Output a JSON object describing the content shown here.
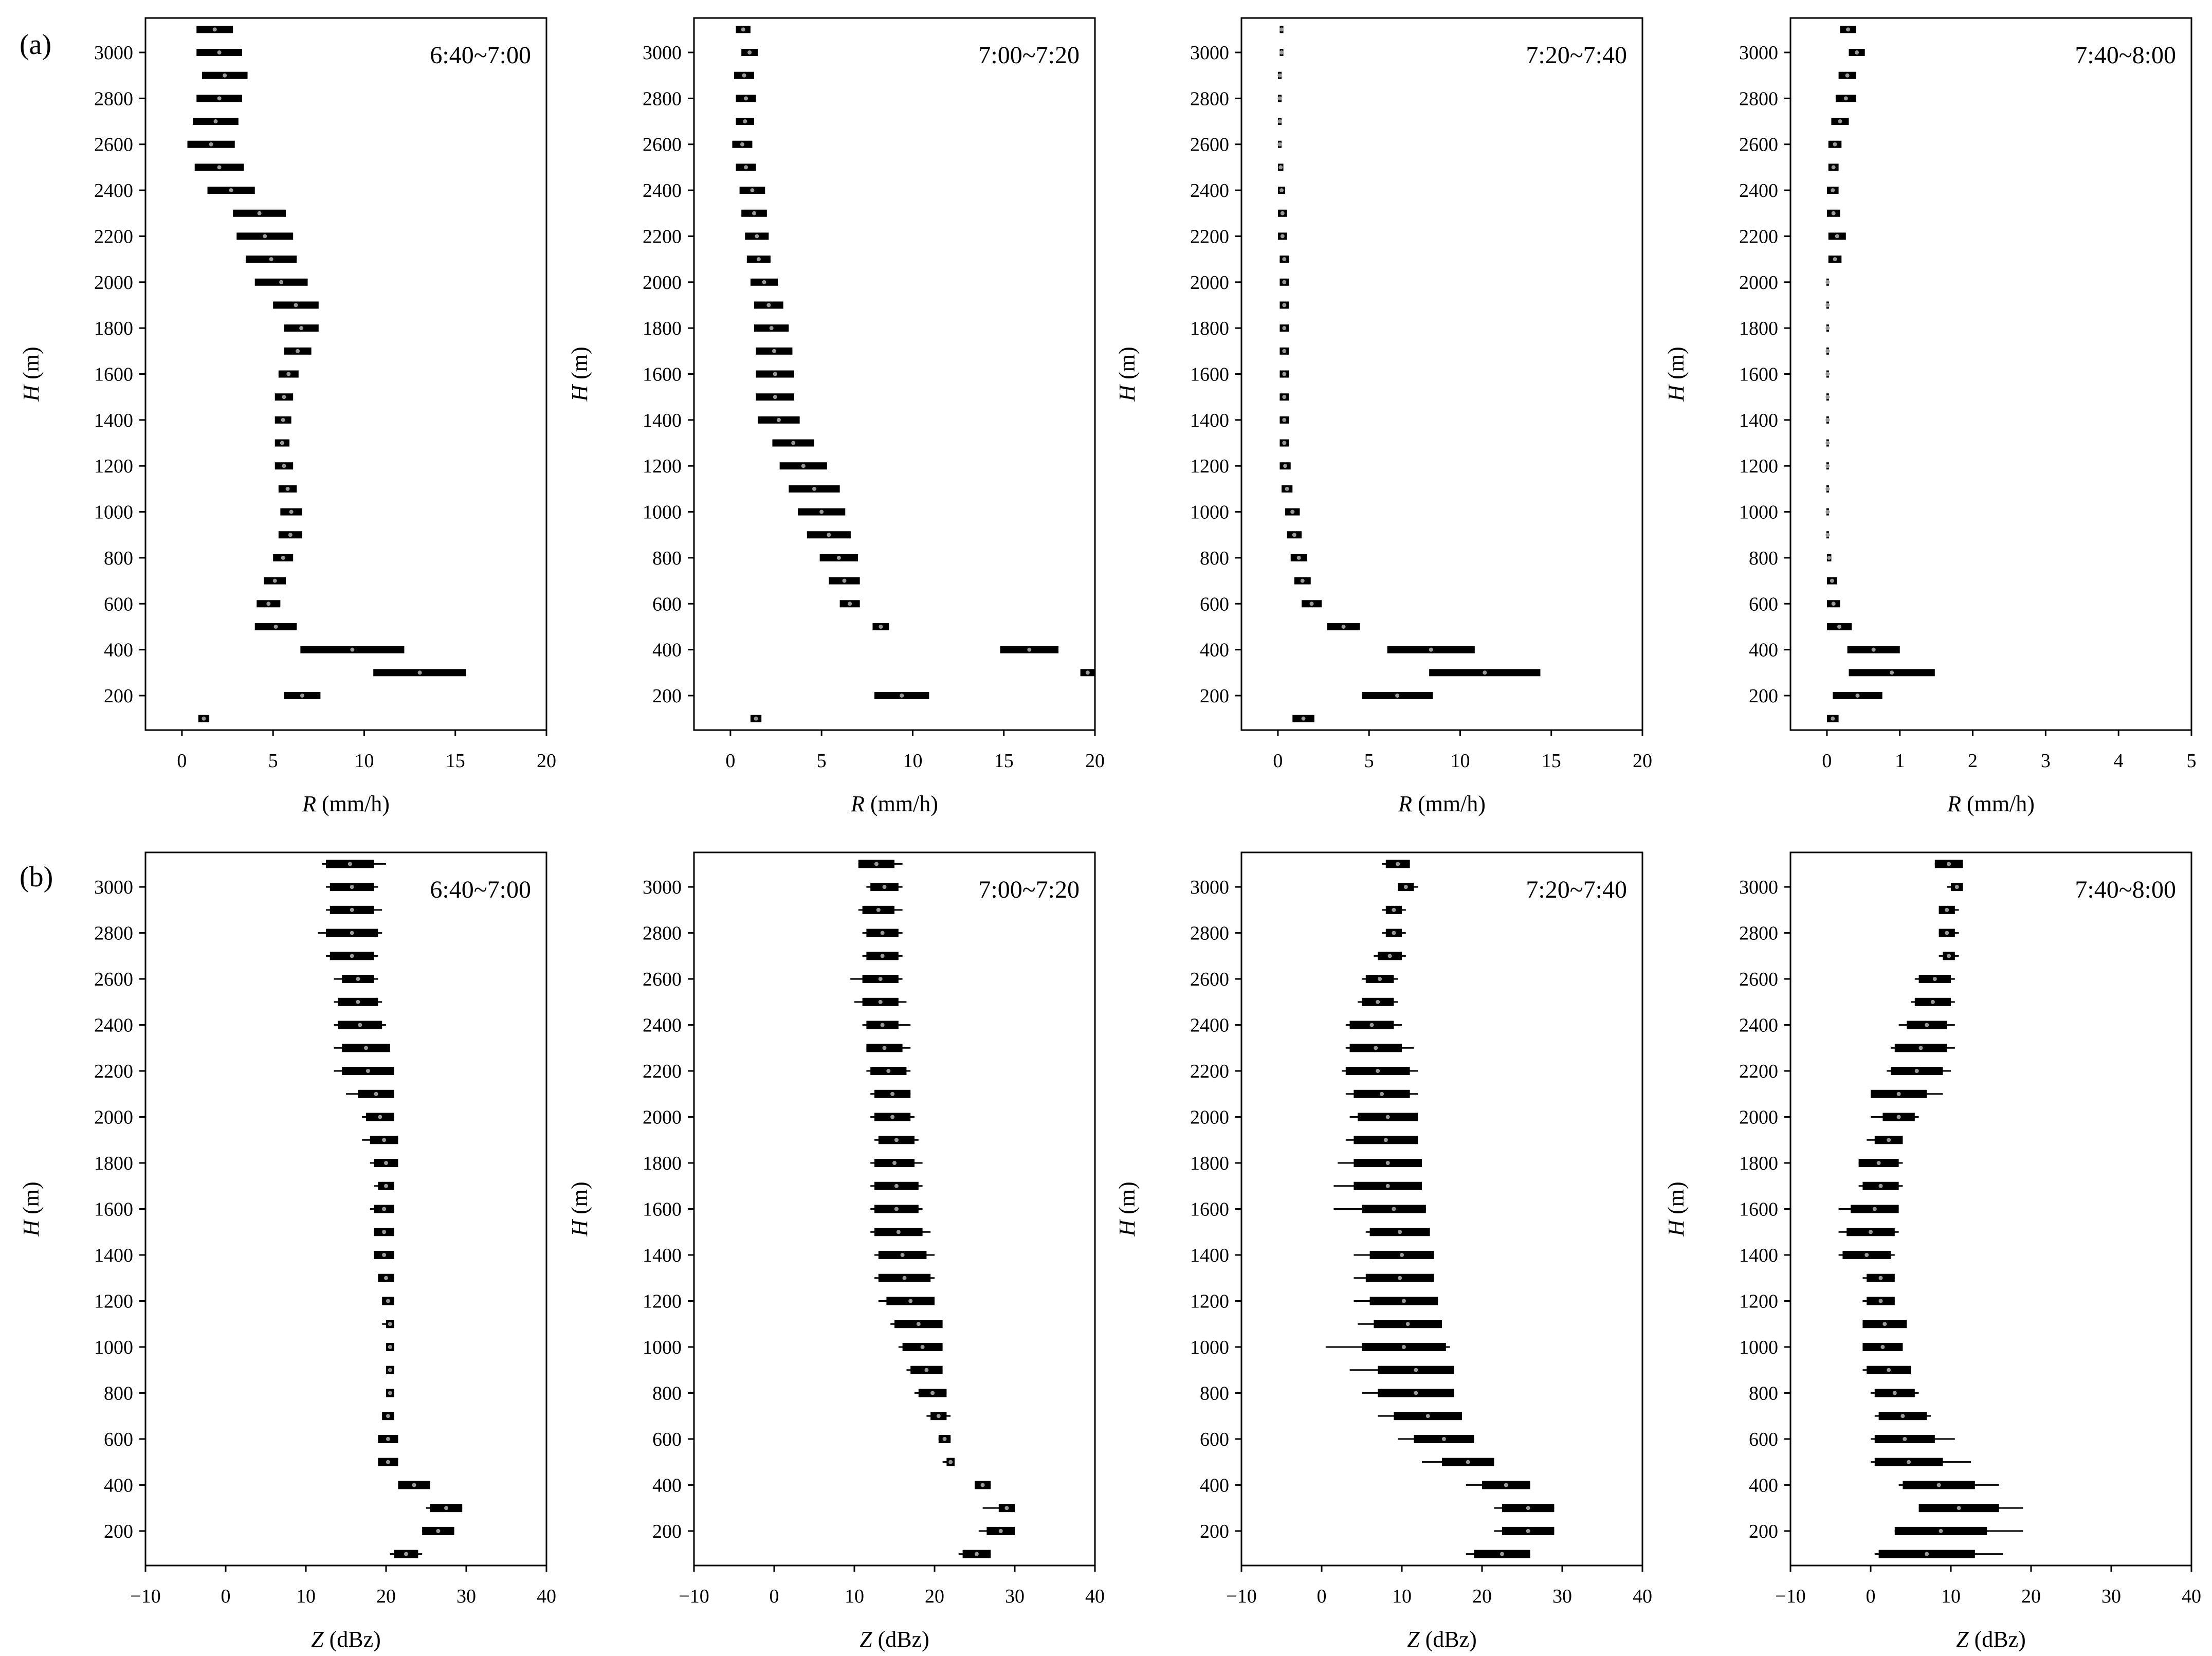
{
  "figure": {
    "row_a_label": "(a)",
    "row_b_label": "(b)"
  },
  "chart_data": [
    {
      "type": "range-bar",
      "row": "a",
      "title": "6:40~7:00",
      "xlabel_var": "R",
      "xlabel_unit": " (mm/h)",
      "ylabel_var": "H",
      "ylabel_unit": " (m)",
      "xlim": [
        -2,
        20
      ],
      "xticks": [
        0,
        5,
        10,
        15,
        20
      ],
      "ylim": [
        50,
        3150
      ],
      "yticks": [
        200,
        400,
        600,
        800,
        1000,
        1200,
        1400,
        1600,
        1800,
        2000,
        2200,
        2400,
        2600,
        2800,
        3000
      ],
      "heights": [
        3100,
        3000,
        2900,
        2800,
        2700,
        2600,
        2500,
        2400,
        2300,
        2200,
        2100,
        2000,
        1900,
        1800,
        1700,
        1600,
        1500,
        1400,
        1300,
        1200,
        1100,
        1000,
        900,
        800,
        700,
        600,
        500,
        400,
        300,
        200,
        100
      ],
      "low": [
        0.8,
        0.8,
        1.1,
        0.8,
        0.6,
        0.3,
        0.7,
        1.4,
        2.8,
        3.0,
        3.5,
        4.0,
        5.0,
        5.6,
        5.6,
        5.3,
        5.1,
        5.1,
        5.1,
        5.1,
        5.3,
        5.4,
        5.3,
        5.0,
        4.5,
        4.1,
        4.0,
        6.5,
        10.5,
        5.6,
        0.9
      ],
      "high": [
        2.8,
        3.3,
        3.6,
        3.3,
        3.1,
        2.9,
        3.4,
        4.0,
        5.7,
        6.1,
        6.3,
        6.9,
        7.5,
        7.5,
        7.1,
        6.4,
        6.1,
        6.0,
        5.9,
        6.1,
        6.3,
        6.6,
        6.6,
        6.1,
        5.7,
        5.4,
        6.3,
        12.2,
        15.6,
        7.6,
        1.5
      ]
    },
    {
      "type": "range-bar",
      "row": "a",
      "title": "7:00~7:20",
      "xlabel_var": "R",
      "xlabel_unit": " (mm/h)",
      "ylabel_var": "H",
      "ylabel_unit": " (m)",
      "xlim": [
        -2,
        20
      ],
      "xticks": [
        0,
        5,
        10,
        15,
        20
      ],
      "ylim": [
        50,
        3150
      ],
      "yticks": [
        200,
        400,
        600,
        800,
        1000,
        1200,
        1400,
        1600,
        1800,
        2000,
        2200,
        2400,
        2600,
        2800,
        3000
      ],
      "heights": [
        3100,
        3000,
        2900,
        2800,
        2700,
        2600,
        2500,
        2400,
        2300,
        2200,
        2100,
        2000,
        1900,
        1800,
        1700,
        1600,
        1500,
        1400,
        1300,
        1200,
        1100,
        1000,
        900,
        800,
        700,
        600,
        500,
        400,
        300,
        200,
        100
      ],
      "low": [
        0.3,
        0.6,
        0.2,
        0.3,
        0.3,
        0.1,
        0.3,
        0.5,
        0.6,
        0.8,
        0.9,
        1.1,
        1.3,
        1.3,
        1.4,
        1.4,
        1.4,
        1.5,
        2.3,
        2.7,
        3.2,
        3.7,
        4.2,
        4.9,
        5.4,
        6.0,
        7.8,
        14.8,
        19.2,
        7.9,
        1.1
      ],
      "high": [
        1.1,
        1.5,
        1.3,
        1.4,
        1.3,
        1.2,
        1.4,
        1.9,
        2.0,
        2.1,
        2.2,
        2.6,
        2.9,
        3.2,
        3.4,
        3.5,
        3.5,
        3.8,
        4.6,
        5.3,
        6.0,
        6.3,
        6.6,
        7.0,
        7.1,
        7.1,
        8.7,
        18.0,
        20.0,
        10.9,
        1.7
      ]
    },
    {
      "type": "range-bar",
      "row": "a",
      "title": "7:20~7:40",
      "xlabel_var": "R",
      "xlabel_unit": " (mm/h)",
      "ylabel_var": "H",
      "ylabel_unit": " (m)",
      "xlim": [
        -2,
        20
      ],
      "xticks": [
        0,
        5,
        10,
        15,
        20
      ],
      "ylim": [
        50,
        3150
      ],
      "yticks": [
        200,
        400,
        600,
        800,
        1000,
        1200,
        1400,
        1600,
        1800,
        2000,
        2200,
        2400,
        2600,
        2800,
        3000
      ],
      "heights": [
        3100,
        3000,
        2900,
        2800,
        2700,
        2600,
        2500,
        2400,
        2300,
        2200,
        2100,
        2000,
        1900,
        1800,
        1700,
        1600,
        1500,
        1400,
        1300,
        1200,
        1100,
        1000,
        900,
        800,
        700,
        600,
        500,
        400,
        300,
        200,
        100
      ],
      "low": [
        0.1,
        0.1,
        0.0,
        0.0,
        0.0,
        0.0,
        0.0,
        0.0,
        0.0,
        0.0,
        0.1,
        0.1,
        0.1,
        0.1,
        0.1,
        0.1,
        0.1,
        0.1,
        0.1,
        0.1,
        0.2,
        0.4,
        0.5,
        0.7,
        0.9,
        1.3,
        2.7,
        6.0,
        8.3,
        4.6,
        0.8
      ],
      "high": [
        0.3,
        0.3,
        0.2,
        0.2,
        0.2,
        0.2,
        0.3,
        0.4,
        0.5,
        0.5,
        0.6,
        0.6,
        0.6,
        0.6,
        0.6,
        0.6,
        0.6,
        0.6,
        0.6,
        0.7,
        0.8,
        1.2,
        1.3,
        1.6,
        1.8,
        2.4,
        4.5,
        10.8,
        14.4,
        8.5,
        2.0
      ]
    },
    {
      "type": "range-bar",
      "row": "a",
      "title": "7:40~8:00",
      "xlabel_var": "R",
      "xlabel_unit": " (mm/h)",
      "ylabel_var": "H",
      "ylabel_unit": " (m)",
      "xlim": [
        -0.5,
        5
      ],
      "xticks": [
        0,
        1,
        2,
        3,
        4,
        5
      ],
      "ylim": [
        50,
        3150
      ],
      "yticks": [
        200,
        400,
        600,
        800,
        1000,
        1200,
        1400,
        1600,
        1800,
        2000,
        2200,
        2400,
        2600,
        2800,
        3000
      ],
      "heights": [
        3100,
        3000,
        2900,
        2800,
        2700,
        2600,
        2500,
        2400,
        2300,
        2200,
        2100,
        2000,
        1900,
        1800,
        1700,
        1600,
        1500,
        1400,
        1300,
        1200,
        1100,
        1000,
        900,
        800,
        700,
        600,
        500,
        400,
        300,
        200,
        100
      ],
      "low": [
        0.18,
        0.3,
        0.16,
        0.12,
        0.06,
        0.02,
        0.02,
        0.0,
        0.0,
        0.02,
        0.02,
        0.0,
        0.0,
        0.0,
        0.0,
        0.0,
        0.0,
        0.0,
        0.0,
        0.0,
        0.0,
        0.0,
        0.0,
        0.0,
        0.0,
        0.0,
        0.0,
        0.28,
        0.3,
        0.08,
        0.0
      ],
      "high": [
        0.4,
        0.52,
        0.4,
        0.4,
        0.3,
        0.2,
        0.16,
        0.16,
        0.18,
        0.26,
        0.2,
        0.02,
        0.02,
        0.02,
        0.02,
        0.02,
        0.02,
        0.02,
        0.02,
        0.02,
        0.02,
        0.02,
        0.02,
        0.06,
        0.14,
        0.18,
        0.34,
        1.0,
        1.48,
        0.76,
        0.16
      ]
    },
    {
      "type": "box",
      "row": "b",
      "title": "6:40~7:00",
      "xlabel_var": "Z",
      "xlabel_unit": " (dBz)",
      "ylabel_var": "H",
      "ylabel_unit": " (m)",
      "xlim": [
        -10,
        40
      ],
      "xticks": [
        -10,
        0,
        10,
        20,
        30,
        40
      ],
      "ylim": [
        50,
        3150
      ],
      "yticks": [
        200,
        400,
        600,
        800,
        1000,
        1200,
        1400,
        1600,
        1800,
        2000,
        2200,
        2400,
        2600,
        2800,
        3000
      ],
      "heights": [
        3100,
        3000,
        2900,
        2800,
        2700,
        2600,
        2500,
        2400,
        2300,
        2200,
        2100,
        2000,
        1900,
        1800,
        1700,
        1600,
        1500,
        1400,
        1300,
        1200,
        1100,
        1000,
        900,
        800,
        700,
        600,
        500,
        400,
        300,
        200,
        100
      ],
      "whisker_low": [
        12,
        12.5,
        12.5,
        11.5,
        12.5,
        13.5,
        13.5,
        13.5,
        13.5,
        13.5,
        15,
        17,
        17,
        18,
        18.5,
        18,
        18.5,
        18.5,
        19,
        19.5,
        19.5,
        20,
        20,
        20,
        19.5,
        19,
        19,
        21.5,
        25,
        24.5,
        20.5
      ],
      "box_low": [
        12.5,
        13,
        13,
        12.5,
        13,
        14.5,
        14,
        14,
        14.5,
        14.5,
        16.5,
        17.5,
        18,
        18.5,
        19,
        18.5,
        18.5,
        18.5,
        19,
        19.5,
        20,
        20,
        20,
        20,
        19.5,
        19,
        19,
        21.5,
        25.5,
        24.5,
        21
      ],
      "box_high": [
        18.5,
        18.5,
        18.5,
        19,
        18.5,
        18.5,
        19,
        19.5,
        20.5,
        21,
        21,
        21,
        21.5,
        21.5,
        21,
        21,
        21,
        21,
        21,
        21,
        21,
        21,
        21,
        21,
        21,
        21.5,
        21.5,
        25.5,
        29.5,
        28.5,
        24
      ],
      "whisker_high": [
        20,
        19,
        19.5,
        19.5,
        19,
        19,
        19.5,
        20,
        20.5,
        21,
        21,
        21,
        21.5,
        21.5,
        21,
        21,
        21,
        21,
        21,
        21,
        21,
        21,
        21,
        21,
        21,
        21.5,
        21.5,
        25.5,
        29.5,
        28.5,
        24.5
      ]
    },
    {
      "type": "box",
      "row": "b",
      "title": "7:00~7:20",
      "xlabel_var": "Z",
      "xlabel_unit": " (dBz)",
      "ylabel_var": "H",
      "ylabel_unit": " (m)",
      "xlim": [
        -10,
        40
      ],
      "xticks": [
        -10,
        0,
        10,
        20,
        30,
        40
      ],
      "ylim": [
        50,
        3150
      ],
      "yticks": [
        200,
        400,
        600,
        800,
        1000,
        1200,
        1400,
        1600,
        1800,
        2000,
        2200,
        2400,
        2600,
        2800,
        3000
      ],
      "heights": [
        3100,
        3000,
        2900,
        2800,
        2700,
        2600,
        2500,
        2400,
        2300,
        2200,
        2100,
        2000,
        1900,
        1800,
        1700,
        1600,
        1500,
        1400,
        1300,
        1200,
        1100,
        1000,
        900,
        800,
        700,
        600,
        500,
        400,
        300,
        200,
        100
      ],
      "whisker_low": [
        10.5,
        11.5,
        10.5,
        11,
        11,
        9.5,
        10,
        11,
        11.5,
        11.5,
        12,
        12,
        12.5,
        12,
        12,
        12,
        12,
        12.5,
        12.5,
        13,
        14.5,
        15.5,
        16.5,
        17.5,
        19,
        20.5,
        21,
        25,
        26,
        25.5,
        23
      ],
      "box_low": [
        10.5,
        12,
        11,
        11.5,
        11.5,
        11,
        11,
        11.5,
        11.5,
        12,
        12.5,
        12.5,
        13,
        12.5,
        12.5,
        12.5,
        12.5,
        13,
        13,
        14,
        15,
        16,
        17,
        18,
        19.5,
        20.5,
        21.5,
        25,
        28,
        26.5,
        23.5
      ],
      "box_high": [
        15,
        15.5,
        15,
        15.5,
        15.5,
        15.5,
        15.5,
        15.5,
        16,
        16.5,
        17,
        17,
        17.5,
        17.5,
        18,
        18,
        18.5,
        19,
        19.5,
        20,
        21,
        21,
        21,
        21.5,
        21.5,
        22,
        22.5,
        27,
        30,
        30,
        27
      ],
      "whisker_high": [
        16,
        16,
        16,
        16,
        16,
        16,
        16.5,
        17,
        17,
        17,
        17,
        17.5,
        18,
        18.5,
        18.5,
        18.5,
        19.5,
        20,
        20,
        20,
        21,
        21,
        21,
        21.5,
        22,
        22,
        22.5,
        27,
        30,
        30,
        27
      ]
    },
    {
      "type": "box",
      "row": "b",
      "title": "7:20~7:40",
      "xlabel_var": "Z",
      "xlabel_unit": " (dBz)",
      "ylabel_var": "H",
      "ylabel_unit": " (m)",
      "xlim": [
        -10,
        40
      ],
      "xticks": [
        -10,
        0,
        10,
        20,
        30,
        40
      ],
      "ylim": [
        50,
        3150
      ],
      "yticks": [
        200,
        400,
        600,
        800,
        1000,
        1200,
        1400,
        1600,
        1800,
        2000,
        2200,
        2400,
        2600,
        2800,
        3000
      ],
      "heights": [
        3100,
        3000,
        2900,
        2800,
        2700,
        2600,
        2500,
        2400,
        2300,
        2200,
        2100,
        2000,
        1900,
        1800,
        1700,
        1600,
        1500,
        1400,
        1300,
        1200,
        1100,
        1000,
        900,
        800,
        700,
        600,
        500,
        400,
        300,
        200,
        100
      ],
      "whisker_low": [
        7.5,
        9.5,
        7.5,
        7.5,
        6.5,
        5,
        4.5,
        3,
        3,
        2.5,
        3,
        3.5,
        3,
        2,
        1.5,
        1.5,
        5.5,
        4,
        4,
        4,
        4.5,
        0.5,
        3.5,
        5,
        7,
        9.5,
        12.5,
        18,
        21.5,
        21.5,
        18
      ],
      "box_low": [
        8,
        9.5,
        8,
        8,
        7,
        5.5,
        5,
        3.5,
        3.5,
        3,
        4,
        4.5,
        4,
        4,
        4,
        5,
        6,
        6,
        5.5,
        6,
        6.5,
        5,
        7,
        7,
        9,
        11.5,
        15,
        20,
        22.5,
        22.5,
        19
      ],
      "box_high": [
        11,
        11.5,
        10,
        10,
        10,
        9,
        9,
        9,
        10,
        11,
        11,
        12,
        12,
        12.5,
        12.5,
        13,
        13.5,
        14,
        14,
        14.5,
        15,
        15.5,
        16.5,
        16.5,
        17.5,
        19,
        21.5,
        26,
        29,
        29,
        26
      ],
      "whisker_high": [
        11,
        12,
        10.5,
        10.5,
        10.5,
        9.5,
        9.5,
        10,
        11.5,
        12,
        12,
        12,
        12,
        12.5,
        12.5,
        13,
        13.5,
        14,
        14,
        14.5,
        15,
        16,
        16.5,
        16.5,
        17.5,
        19,
        21.5,
        26,
        29,
        29,
        26
      ]
    },
    {
      "type": "box",
      "row": "b",
      "title": "7:40~8:00",
      "xlabel_var": "Z",
      "xlabel_unit": " (dBz)",
      "ylabel_var": "H",
      "ylabel_unit": " (m)",
      "xlim": [
        -10,
        40
      ],
      "xticks": [
        -10,
        0,
        10,
        20,
        30,
        40
      ],
      "ylim": [
        50,
        3150
      ],
      "yticks": [
        200,
        400,
        600,
        800,
        1000,
        1200,
        1400,
        1600,
        1800,
        2000,
        2200,
        2400,
        2600,
        2800,
        3000
      ],
      "heights": [
        3100,
        3000,
        2900,
        2800,
        2700,
        2600,
        2500,
        2400,
        2300,
        2200,
        2100,
        2000,
        1900,
        1800,
        1700,
        1600,
        1500,
        1400,
        1300,
        1200,
        1100,
        1000,
        900,
        800,
        700,
        600,
        500,
        400,
        300,
        200,
        100
      ],
      "whisker_low": [
        8,
        9.5,
        8.5,
        8.5,
        8.5,
        5.5,
        5,
        3.5,
        2.5,
        2,
        0,
        0,
        -0.5,
        -1.5,
        -1.5,
        -4,
        -4,
        -4,
        -1,
        -1,
        -1,
        -1,
        -1,
        0,
        0.5,
        0,
        0,
        3.5,
        6,
        3,
        0.5
      ],
      "box_low": [
        8,
        10,
        8.5,
        8.5,
        9,
        6,
        5.5,
        4.5,
        3,
        2.5,
        0,
        1.5,
        0.5,
        -1.5,
        -1,
        -2.5,
        -3,
        -3.5,
        -0.5,
        -0.5,
        -1,
        -1,
        -0.5,
        0.5,
        1,
        0.5,
        0.5,
        4,
        6,
        3,
        1
      ],
      "box_high": [
        11.5,
        11.5,
        10.5,
        10.5,
        10.5,
        10,
        10,
        9.5,
        9.5,
        9,
        7,
        5.5,
        4,
        3.5,
        3.5,
        3.5,
        3,
        2.5,
        3,
        3,
        4.5,
        4,
        5,
        5.5,
        7,
        8,
        9,
        13,
        16,
        14.5,
        13
      ],
      "whisker_high": [
        11.5,
        11.5,
        11,
        11,
        11,
        10.5,
        10.5,
        10.5,
        10.5,
        10,
        9,
        6,
        4,
        4,
        4,
        3.5,
        3.5,
        3,
        3,
        3,
        4.5,
        4,
        5,
        6,
        7.5,
        10.5,
        12.5,
        16,
        19,
        19,
        16.5
      ]
    }
  ]
}
